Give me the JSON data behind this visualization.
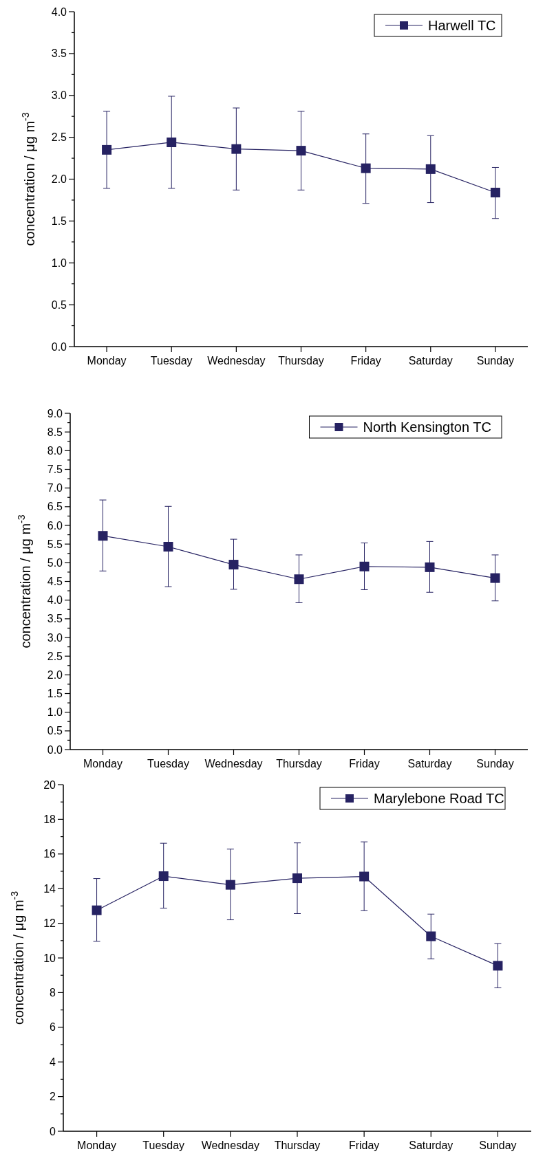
{
  "chart_data": [
    {
      "type": "line",
      "ylabel": "concentration / μg m$^{-3}$",
      "categories": [
        "Monday",
        "Tuesday",
        "Wednesday",
        "Thursday",
        "Friday",
        "Saturday",
        "Sunday"
      ],
      "series": [
        {
          "name": "Harwell TC",
          "color": "#262262",
          "values": [
            2.35,
            2.44,
            2.36,
            2.34,
            2.13,
            2.12,
            1.84
          ],
          "errors": [
            [
              1.89,
              2.81
            ],
            [
              1.89,
              2.99
            ],
            [
              1.87,
              2.85
            ],
            [
              1.87,
              2.81
            ],
            [
              1.71,
              2.54
            ],
            [
              1.72,
              2.52
            ],
            [
              1.53,
              2.14
            ]
          ]
        }
      ],
      "ylim": [
        0,
        4
      ],
      "yticks": [
        {
          "value": 0,
          "label": "0.0"
        },
        {
          "value": 0.25,
          "label": null
        },
        0.5,
        {
          "value": 0.75,
          "label": null
        },
        {
          "value": 1,
          "label": "1.0"
        },
        {
          "value": 1.25,
          "label": null
        },
        1.5,
        {
          "value": 1.75,
          "label": null
        },
        {
          "value": 2,
          "label": "2.0"
        },
        {
          "value": 2.25,
          "label": null
        },
        2.5,
        {
          "value": 2.75,
          "label": null
        },
        {
          "value": 3,
          "label": "3.0"
        },
        {
          "value": 3.25,
          "label": null
        },
        3.5,
        {
          "value": 3.75,
          "label": null
        },
        {
          "value": 4,
          "label": "4.0"
        }
      ],
      "marker": "square",
      "line_style": "solid",
      "legend": "top right"
    },
    {
      "type": "line",
      "ylabel": "concentration / μg m$^{-3}$",
      "categories": [
        "Monday",
        "Tuesday",
        "Wednesday",
        "Thursday",
        "Friday",
        "Saturday",
        "Sunday"
      ],
      "series": [
        {
          "name": "North Kensington TC",
          "color": "#262262",
          "values": [
            5.72,
            5.43,
            4.95,
            4.56,
            4.9,
            4.88,
            4.59
          ],
          "errors": [
            [
              4.78,
              6.68
            ],
            [
              4.36,
              6.51
            ],
            [
              4.29,
              5.63
            ],
            [
              3.93,
              5.21
            ],
            [
              4.28,
              5.53
            ],
            [
              4.21,
              5.57
            ],
            [
              3.98,
              5.21
            ]
          ]
        }
      ],
      "ylim": [
        0,
        9
      ],
      "yticks": [
        {
          "value": 0,
          "label": "0.0"
        },
        {
          "value": 0.25,
          "label": null
        },
        0.5,
        {
          "value": 0.75,
          "label": null
        },
        {
          "value": 1,
          "label": "1.0"
        },
        {
          "value": 1.25,
          "label": null
        },
        1.5,
        {
          "value": 1.75,
          "label": null
        },
        {
          "value": 2,
          "label": "2.0"
        },
        {
          "value": 2.25,
          "label": null
        },
        2.5,
        {
          "value": 2.75,
          "label": null
        },
        {
          "value": 3,
          "label": "3.0"
        },
        {
          "value": 3.25,
          "label": null
        },
        3.5,
        {
          "value": 3.75,
          "label": null
        },
        {
          "value": 4,
          "label": "4.0"
        },
        {
          "value": 4.25,
          "label": null
        },
        4.5,
        {
          "value": 4.75,
          "label": null
        },
        {
          "value": 5,
          "label": "5.0"
        },
        {
          "value": 5.25,
          "label": null
        },
        5.5,
        {
          "value": 5.75,
          "label": null
        },
        {
          "value": 6,
          "label": "6.0"
        },
        {
          "value": 6.25,
          "label": null
        },
        6.5,
        {
          "value": 6.75,
          "label": null
        },
        {
          "value": 7,
          "label": "7.0"
        },
        {
          "value": 7.25,
          "label": null
        },
        7.5,
        {
          "value": 7.75,
          "label": null
        },
        {
          "value": 8,
          "label": "8.0"
        },
        {
          "value": 8.25,
          "label": null
        },
        8.5,
        {
          "value": 8.75,
          "label": null
        },
        {
          "value": 9,
          "label": "9.0"
        }
      ],
      "marker": "square",
      "line_style": "solid",
      "legend": "top right"
    },
    {
      "type": "line",
      "ylabel": "concentration / μg m$^{-3}$",
      "categories": [
        "Monday",
        "Tuesday",
        "Wednesday",
        "Thursday",
        "Friday",
        "Saturday",
        "Sunday"
      ],
      "series": [
        {
          "name": "Marylebone Road TC",
          "color": "#262262",
          "values": [
            12.75,
            14.72,
            14.22,
            14.6,
            14.7,
            11.25,
            9.55
          ],
          "errors": [
            [
              10.96,
              14.58
            ],
            [
              12.87,
              16.62
            ],
            [
              12.2,
              16.28
            ],
            [
              12.56,
              16.64
            ],
            [
              12.73,
              16.7
            ],
            [
              9.95,
              12.53
            ],
            [
              8.28,
              10.83
            ]
          ]
        }
      ],
      "ylim": [
        0,
        20
      ],
      "yticks": [
        0,
        {
          "value": 1,
          "label": null
        },
        2,
        {
          "value": 3,
          "label": null
        },
        4,
        {
          "value": 5,
          "label": null
        },
        6,
        {
          "value": 7,
          "label": null
        },
        8,
        {
          "value": 9,
          "label": null
        },
        10,
        {
          "value": 11,
          "label": null
        },
        12,
        {
          "value": 13,
          "label": null
        },
        14,
        {
          "value": 15,
          "label": null
        },
        16,
        {
          "value": 17,
          "label": null
        },
        18,
        {
          "value": 19,
          "label": null
        },
        20
      ],
      "marker": "square",
      "line_style": "solid",
      "legend": "top right"
    }
  ]
}
